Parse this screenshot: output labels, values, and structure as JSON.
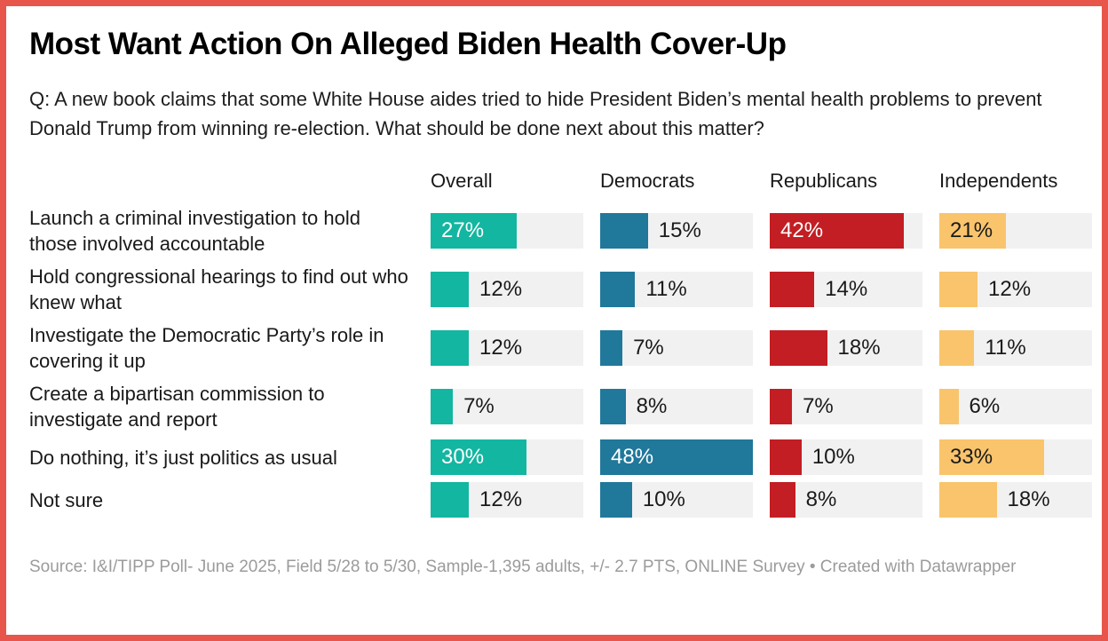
{
  "frame": {
    "border_color": "#e8564b",
    "background_color": "#ffffff"
  },
  "header": {
    "title": "Most Want Action On Alleged Biden Health Cover-Up",
    "subtitle": "Q: A new book claims that some White House aides tried to hide President Biden’s mental health problems to prevent Donald Trump from winning re-election. What should be done next about this matter?"
  },
  "chart_data": {
    "type": "bar",
    "orientation": "horizontal",
    "layout": "small-multiples-columns",
    "xmax": 48,
    "value_suffix": "%",
    "grid": false,
    "track_color": "#f1f1f1",
    "inside_label_threshold": 20,
    "outside_label_color": "#1a1a1a",
    "columns": [
      {
        "name": "Overall",
        "color": "#13b6a0",
        "inside_label_color": "#ffffff"
      },
      {
        "name": "Democrats",
        "color": "#20789b",
        "inside_label_color": "#ffffff"
      },
      {
        "name": "Republicans",
        "color": "#c21e23",
        "inside_label_color": "#ffffff"
      },
      {
        "name": "Independents",
        "color": "#f9c46c",
        "inside_label_color": "#1a1a1a"
      }
    ],
    "categories": [
      "Launch a criminal investigation to hold those involved accountable",
      "Hold congressional hearings to find out who knew what",
      "Investigate the Democratic Party’s role in covering it up",
      "Create a bipartisan commission to investigate and report",
      "Do nothing, it’s just politics as usual",
      "Not sure"
    ],
    "series": [
      {
        "name": "Overall",
        "values": [
          27,
          12,
          12,
          7,
          30,
          12
        ]
      },
      {
        "name": "Democrats",
        "values": [
          15,
          11,
          7,
          8,
          48,
          10
        ]
      },
      {
        "name": "Republicans",
        "values": [
          42,
          14,
          18,
          7,
          10,
          8
        ]
      },
      {
        "name": "Independents",
        "values": [
          21,
          12,
          11,
          6,
          33,
          18
        ]
      }
    ]
  },
  "footer": {
    "source": "Source: I&I/TIPP Poll- June 2025, Field 5/28 to 5/30, Sample-1,395 adults, +/- 2.7 PTS, ONLINE Survey • Created with Datawrapper"
  }
}
